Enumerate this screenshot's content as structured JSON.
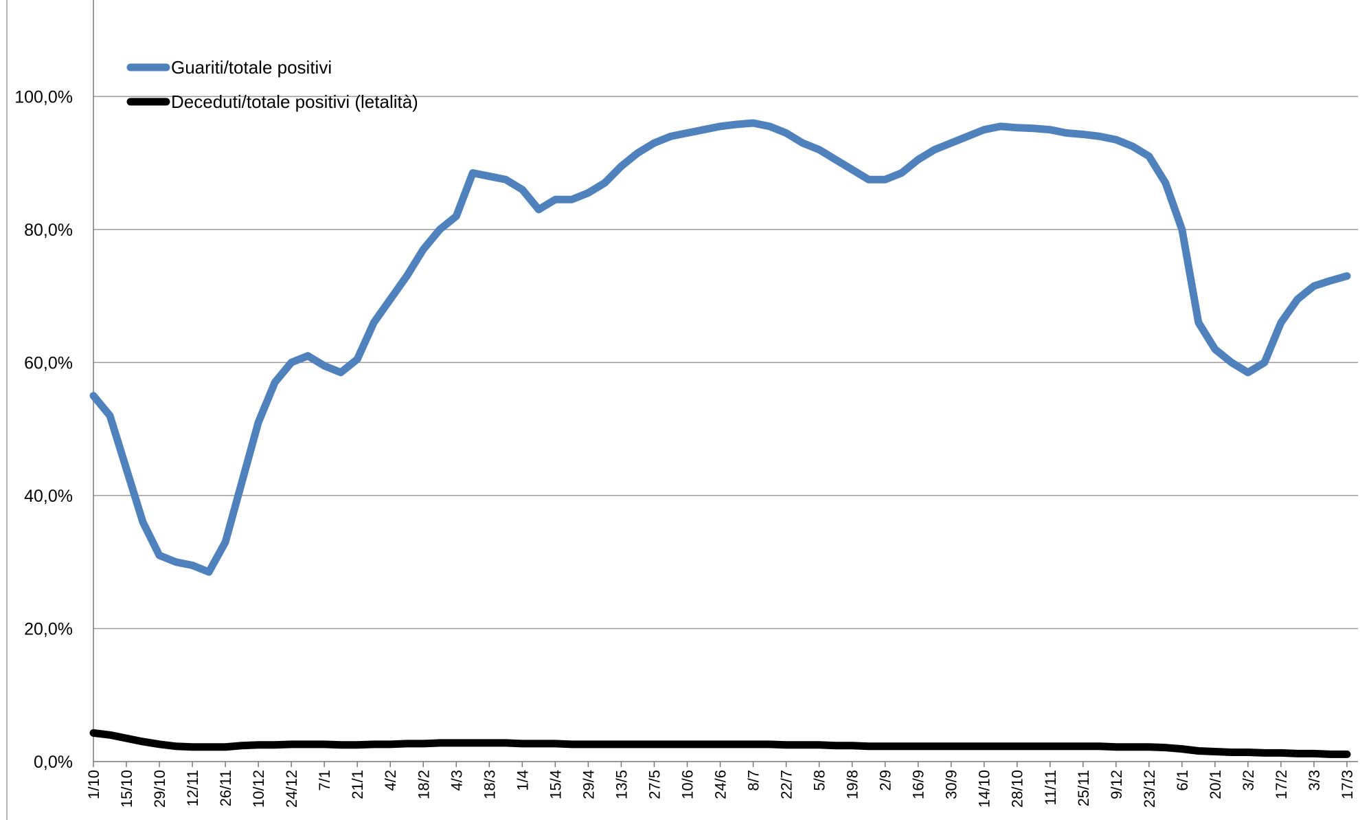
{
  "chart_data": {
    "type": "line",
    "categories": [
      "1/10",
      null,
      "15/10",
      null,
      "29/10",
      null,
      "12/11",
      null,
      "26/11",
      null,
      "10/12",
      null,
      "24/12",
      null,
      "7/1",
      null,
      "21/1",
      null,
      "4/2",
      null,
      "18/2",
      null,
      "4/3",
      null,
      "18/3",
      null,
      "1/4",
      null,
      "15/4",
      null,
      "29/4",
      null,
      "13/5",
      null,
      "27/5",
      null,
      "10/6",
      null,
      "24/6",
      null,
      "8/7",
      null,
      "22/7",
      null,
      "5/8",
      null,
      "19/8",
      null,
      "2/9",
      null,
      "16/9",
      null,
      "30/9",
      null,
      "14/10",
      null,
      "28/10",
      null,
      "11/11",
      null,
      "25/11",
      null,
      "9/12",
      null,
      "23/12",
      null,
      "6/1",
      null,
      "20/1",
      null,
      "3/2",
      null,
      "17/2",
      null,
      "3/3",
      null,
      "17/3"
    ],
    "series": [
      {
        "name": "Guariti/totale positivi",
        "color": "#4f81bd",
        "values": [
          55,
          52,
          44,
          36,
          31,
          30,
          29.5,
          28.5,
          33,
          42,
          51,
          57,
          60,
          61,
          59.5,
          58.5,
          60.5,
          66,
          69.5,
          73,
          77,
          80,
          82,
          88.5,
          88,
          87.5,
          86,
          83,
          84.5,
          84.5,
          85.5,
          87,
          89.5,
          91.5,
          93,
          94,
          94.5,
          95,
          95.5,
          95.8,
          96,
          95.5,
          94.5,
          93,
          92,
          90.5,
          89,
          87.5,
          87.5,
          88.5,
          90.5,
          92,
          93,
          94,
          95,
          95.5,
          95.3,
          95.2,
          95,
          94.5,
          94.3,
          94,
          93.5,
          92.5,
          91,
          87,
          80,
          66,
          62,
          60,
          58.5,
          60,
          66,
          69.5,
          71.5,
          72.3,
          73
        ]
      },
      {
        "name": "Deceduti/totale positivi (letalità)",
        "color": "#000000",
        "values": [
          4.3,
          4.0,
          3.5,
          3.0,
          2.6,
          2.3,
          2.2,
          2.2,
          2.2,
          2.4,
          2.5,
          2.5,
          2.6,
          2.6,
          2.6,
          2.5,
          2.5,
          2.6,
          2.6,
          2.7,
          2.7,
          2.8,
          2.8,
          2.8,
          2.8,
          2.8,
          2.7,
          2.7,
          2.7,
          2.6,
          2.6,
          2.6,
          2.6,
          2.6,
          2.6,
          2.6,
          2.6,
          2.6,
          2.6,
          2.6,
          2.6,
          2.6,
          2.5,
          2.5,
          2.5,
          2.4,
          2.4,
          2.3,
          2.3,
          2.3,
          2.3,
          2.3,
          2.3,
          2.3,
          2.3,
          2.3,
          2.3,
          2.3,
          2.3,
          2.3,
          2.3,
          2.3,
          2.2,
          2.2,
          2.2,
          2.1,
          1.9,
          1.6,
          1.5,
          1.4,
          1.4,
          1.3,
          1.3,
          1.2,
          1.2,
          1.1,
          1.1
        ]
      }
    ],
    "ylim": [
      0,
      114.5
    ],
    "yticks": [
      {
        "value": 0,
        "label": "0,0%"
      },
      {
        "value": 20,
        "label": "20,0%"
      },
      {
        "value": 40,
        "label": "40,0%"
      },
      {
        "value": 60,
        "label": "60,0%"
      },
      {
        "value": 80,
        "label": "80,0%"
      },
      {
        "value": 100,
        "label": "100,0%"
      }
    ],
    "grid": true,
    "legend": "top-left"
  }
}
